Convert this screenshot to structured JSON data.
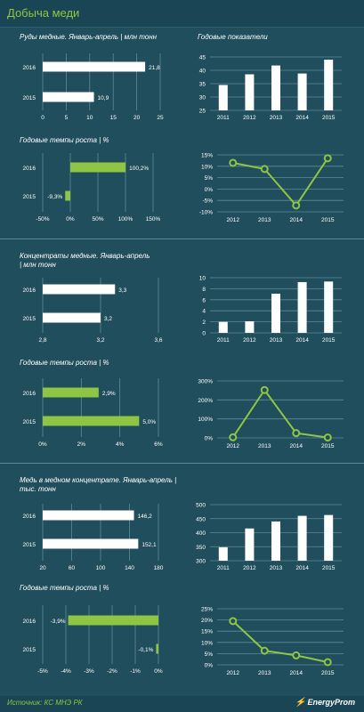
{
  "header": {
    "title": "Добыча меди"
  },
  "footer": {
    "source": "Источник: КС МНЭ РК",
    "logo": "EnergyProm"
  },
  "colors": {
    "background": "#214e5d",
    "bar_white": "#ffffff",
    "accent_green": "#8ec641",
    "grid": "#5b8a98",
    "text": "#ffffff"
  },
  "chart_data": [
    {
      "type": "bar",
      "orientation": "horizontal",
      "title": "Руды медные. Январь-апрель | млн тонн",
      "categories": [
        "2016",
        "2015"
      ],
      "values": [
        21.8,
        10.9
      ],
      "value_labels": [
        "21,8",
        "10,9"
      ],
      "xlim": [
        0,
        25
      ],
      "ticks": [
        0,
        5,
        10,
        15,
        20,
        25
      ],
      "tick_labels": [
        "0",
        "5",
        "10",
        "15",
        "20",
        "25"
      ],
      "color": "#ffffff"
    },
    {
      "type": "bar",
      "title": "Годовые показатели",
      "categories": [
        "2011",
        "2012",
        "2013",
        "2014",
        "2015"
      ],
      "values": [
        34.5,
        38.5,
        41.8,
        38.8,
        44.0
      ],
      "ylim": [
        25,
        45
      ],
      "ticks": [
        25,
        30,
        35,
        40,
        45
      ],
      "tick_labels": [
        "25",
        "30",
        "35",
        "40",
        "45"
      ],
      "color": "#ffffff"
    },
    {
      "type": "bar",
      "orientation": "horizontal",
      "title": "Годовые темпы роста | %",
      "categories": [
        "2016",
        "2015"
      ],
      "values": [
        100.2,
        -9.3
      ],
      "value_labels": [
        "100,2%",
        "-9,3%"
      ],
      "xlim": [
        -50,
        150
      ],
      "ticks": [
        -50,
        0,
        50,
        100,
        150
      ],
      "tick_labels": [
        "-50%",
        "0%",
        "50%",
        "100%",
        "150%"
      ],
      "color": "#8ec641"
    },
    {
      "type": "line",
      "x": [
        "2012",
        "2013",
        "2014",
        "2015"
      ],
      "values": [
        11.5,
        8.8,
        -7.2,
        13.5
      ],
      "ylim": [
        -10,
        15
      ],
      "ticks": [
        -10,
        -5,
        0,
        5,
        10,
        15
      ],
      "tick_labels": [
        "-10%",
        "-5%",
        "0%",
        "5%",
        "10%",
        "15%"
      ],
      "color": "#8ec641"
    },
    {
      "type": "bar",
      "orientation": "horizontal",
      "title": "Концентраты медные. Январь-апрель | млн тонн",
      "categories": [
        "2016",
        "2015"
      ],
      "values": [
        3.3,
        3.2
      ],
      "value_labels": [
        "3,3",
        "3,2"
      ],
      "xlim": [
        2.8,
        3.6
      ],
      "ticks": [
        2.8,
        3.2,
        3.6
      ],
      "tick_labels": [
        "2,8",
        "3,2",
        "3,6"
      ],
      "color": "#ffffff"
    },
    {
      "type": "bar",
      "categories": [
        "2011",
        "2012",
        "2013",
        "2014",
        "2015"
      ],
      "values": [
        2.0,
        2.1,
        7.1,
        9.2,
        9.3
      ],
      "ylim": [
        0,
        10
      ],
      "ticks": [
        0,
        2,
        4,
        6,
        8,
        10
      ],
      "tick_labels": [
        "0",
        "2",
        "4",
        "6",
        "8",
        "10"
      ],
      "color": "#ffffff"
    },
    {
      "type": "bar",
      "orientation": "horizontal",
      "title": "Годовые темпы роста | %",
      "categories": [
        "2016",
        "2015"
      ],
      "values": [
        2.9,
        5.0
      ],
      "value_labels": [
        "2,9%",
        "5,0%"
      ],
      "xlim": [
        0,
        6
      ],
      "ticks": [
        0,
        2,
        4,
        6
      ],
      "tick_labels": [
        "0%",
        "2%",
        "4%",
        "6%"
      ],
      "color": "#8ec641"
    },
    {
      "type": "line",
      "x": [
        "2012",
        "2013",
        "2014",
        "2015"
      ],
      "values": [
        3,
        252,
        25,
        2
      ],
      "ylim": [
        0,
        300
      ],
      "ticks": [
        0,
        100,
        200,
        300
      ],
      "tick_labels": [
        "0%",
        "100%",
        "200%",
        "300%"
      ],
      "color": "#8ec641"
    },
    {
      "type": "bar",
      "orientation": "horizontal",
      "title": "Медь в медном концентрате. Январь-апрель | тыс. тонн",
      "categories": [
        "2016",
        "2015"
      ],
      "values": [
        146.2,
        152.1
      ],
      "value_labels": [
        "146,2",
        "152,1"
      ],
      "xlim": [
        20,
        180
      ],
      "ticks": [
        20,
        60,
        100,
        140,
        180
      ],
      "tick_labels": [
        "20",
        "60",
        "100",
        "140",
        "180"
      ],
      "color": "#ffffff"
    },
    {
      "type": "bar",
      "categories": [
        "2011",
        "2012",
        "2013",
        "2014",
        "2015"
      ],
      "values": [
        348,
        415,
        440,
        460,
        463
      ],
      "ylim": [
        300,
        500
      ],
      "ticks": [
        300,
        350,
        400,
        450,
        500
      ],
      "tick_labels": [
        "300",
        "350",
        "400",
        "450",
        "500"
      ],
      "color": "#ffffff"
    },
    {
      "type": "bar",
      "orientation": "horizontal",
      "title": "Годовые темпы роста | %",
      "categories": [
        "2016",
        "2015"
      ],
      "values": [
        -3.9,
        -0.1
      ],
      "value_labels": [
        "-3,9%",
        "-0,1%"
      ],
      "xlim": [
        -5,
        0
      ],
      "ticks": [
        -5,
        -4,
        -3,
        -2,
        -1,
        0
      ],
      "tick_labels": [
        "-5%",
        "-4%",
        "-3%",
        "-2%",
        "-1%",
        "0%"
      ],
      "color": "#8ec641"
    },
    {
      "type": "line",
      "x": [
        "2012",
        "2013",
        "2014",
        "2015"
      ],
      "values": [
        19.5,
        6.3,
        4.2,
        1.2
      ],
      "ylim": [
        0,
        25
      ],
      "ticks": [
        0,
        5,
        10,
        15,
        20,
        25
      ],
      "tick_labels": [
        "0%",
        "5%",
        "10%",
        "15%",
        "20%",
        "25%"
      ],
      "color": "#8ec641"
    }
  ]
}
